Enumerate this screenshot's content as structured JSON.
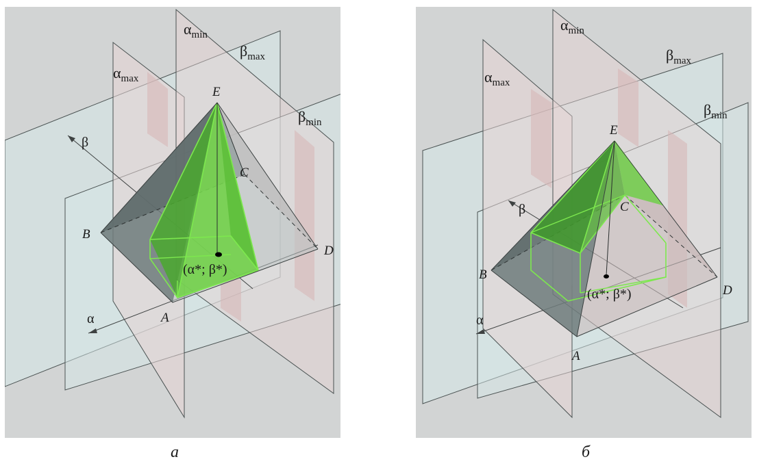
{
  "panels": [
    {
      "id": "a",
      "caption": "а",
      "planes": {
        "alpha_max": "α",
        "alpha_min": "α",
        "beta_max": "β",
        "beta_min": "β",
        "sub_max": "max",
        "sub_min": "min"
      },
      "axes": {
        "alpha": "α",
        "beta": "β"
      },
      "vertices": {
        "A": "A",
        "B": "B",
        "C": "C",
        "D": "D",
        "E": "E"
      },
      "point_label": "(α*; β*)"
    },
    {
      "id": "b",
      "caption": "б",
      "planes": {
        "alpha_max": "α",
        "alpha_min": "α",
        "beta_max": "β",
        "beta_min": "β",
        "sub_max": "max",
        "sub_min": "min"
      },
      "axes": {
        "alpha": "α",
        "beta": "β"
      },
      "vertices": {
        "A": "A",
        "B": "B",
        "C": "C",
        "D": "D",
        "E": "E"
      },
      "point_label": "(α*; β*)"
    }
  ],
  "colors": {
    "background": "#d2d4d4",
    "plane_beta": "#d5e8e8",
    "plane_alpha": "#e6d3d3",
    "pyramid_dark": "#6e7b7b",
    "pyramid_light": "#c4b4b4",
    "green_fill": "#5fc43c",
    "green_edge": "#7de84e",
    "line": "#3e4242"
  }
}
